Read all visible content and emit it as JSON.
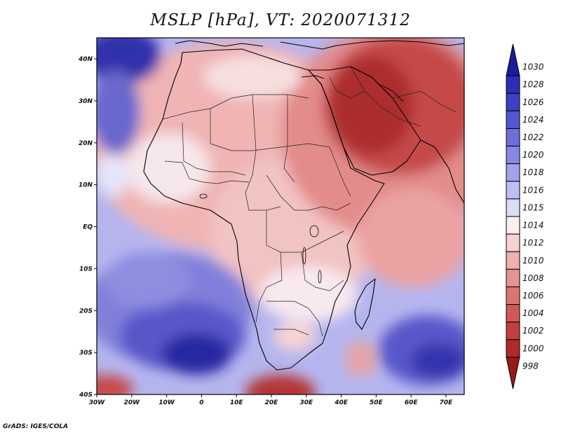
{
  "title": "MSLP [hPa], VT: 2020071312",
  "footer": "GrADS: IGES/COLA",
  "map": {
    "lat_ticks": [
      "40N",
      "30N",
      "20N",
      "10N",
      "EQ",
      "10S",
      "20S",
      "30S",
      "40S"
    ],
    "lon_ticks": [
      "30W",
      "20W",
      "10W",
      "0",
      "10E",
      "20E",
      "30E",
      "40E",
      "50E",
      "60E",
      "70E"
    ]
  },
  "colorbar": {
    "levels": [
      "1030",
      "1028",
      "1026",
      "1024",
      "1022",
      "1020",
      "1018",
      "1016",
      "1015",
      "1014",
      "1012",
      "1010",
      "1008",
      "1006",
      "1004",
      "1002",
      "1000",
      "998"
    ],
    "colors": [
      "#1a1aa0",
      "#2d2db8",
      "#3f3fc6",
      "#5656d2",
      "#6e6edb",
      "#8888e4",
      "#a2a2ec",
      "#bebef3",
      "#dcdcf9",
      "#f9eef0",
      "#f8d2d2",
      "#f0b0b0",
      "#e69393",
      "#dc7474",
      "#d05858",
      "#c23f3f",
      "#b02a2a",
      "#9a1a1a"
    ]
  }
}
